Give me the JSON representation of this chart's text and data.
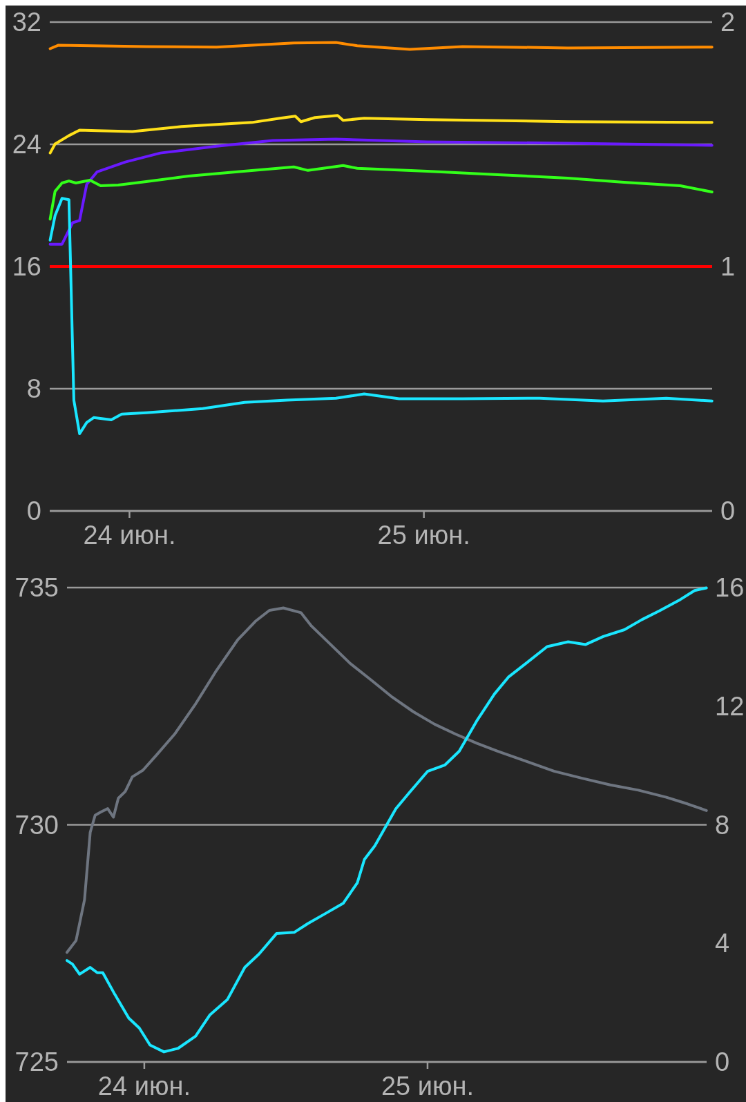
{
  "chart_data": [
    {
      "type": "line",
      "xlim": [
        "--06-23T17:30",
        "--06-25T23:30"
      ],
      "xticks": [
        {
          "value": "--06-24",
          "label": "24 июн."
        },
        {
          "value": "--06-25",
          "label": "25 июн."
        }
      ],
      "ylim": [
        0,
        32
      ],
      "yticks": [
        0,
        8,
        16,
        24,
        32
      ],
      "y2lim": [
        0,
        2
      ],
      "y2ticks": [
        0,
        1,
        2
      ],
      "grid": "y",
      "ref_lines": [
        {
          "axis": "y",
          "value": 16,
          "label": null,
          "color": "#ff0000"
        }
      ],
      "series": [
        {
          "color": "#ff8c00",
          "x": [
            "--06-23T17:32",
            "--06-23T18:13",
            "--06-24T01:22",
            "--06-24T07:06",
            "--06-24T13:24",
            "--06-24T16:50",
            "--06-24T18:34",
            "--06-24T22:51",
            "--06-25T03:09",
            "--06-25T11:44",
            "--06-25T23:29"
          ],
          "values": [
            30.26,
            30.49,
            30.4,
            30.36,
            30.63,
            30.67,
            30.45,
            30.22,
            30.4,
            30.31,
            30.36
          ]
        },
        {
          "color": "#ffe01a",
          "x": [
            "--06-23T17:32",
            "--06-23T17:56",
            "--06-23T19:04",
            "--06-23T19:56",
            "--06-23T21:22",
            "--06-24T00:14",
            "--06-24T04:14",
            "--06-24T09:58",
            "--06-24T12:16",
            "--06-24T13:31",
            "--06-24T13:59",
            "--06-24T15:07",
            "--06-24T16:58",
            "--06-24T17:25",
            "--06-24T19:08",
            "--06-25T00:17",
            "--06-25T11:44",
            "--06-25T23:29"
          ],
          "values": [
            23.43,
            24.02,
            24.57,
            24.93,
            24.89,
            24.84,
            25.16,
            25.43,
            25.71,
            25.84,
            25.48,
            25.75,
            25.89,
            25.57,
            25.71,
            25.62,
            25.48,
            25.43
          ]
        },
        {
          "color": "#6a1aff",
          "x": [
            "--06-23T17:32",
            "--06-23T18:30",
            "--06-23T19:22",
            "--06-23T19:56",
            "--06-23T20:31",
            "--06-23T21:22",
            "--06-23T23:40",
            "--06-24T02:31",
            "--06-24T07:06",
            "--06-24T11:41",
            "--06-24T16:50",
            "--06-25T00:17",
            "--06-25T11:44",
            "--06-25T23:29"
          ],
          "values": [
            17.46,
            17.46,
            18.87,
            19.01,
            21.38,
            22.2,
            22.84,
            23.43,
            23.88,
            24.25,
            24.34,
            24.16,
            24.07,
            23.93
          ]
        },
        {
          "color": "#33ff1a",
          "x": [
            "--06-23T17:32",
            "--06-23T17:56",
            "--06-23T18:30",
            "--06-23T19:04",
            "--06-23T19:38",
            "--06-23T20:47",
            "--06-23T21:39",
            "--06-23T23:05",
            "--06-24T01:22",
            "--06-24T04:49",
            "--06-24T08:49",
            "--06-24T13:24",
            "--06-24T14:33",
            "--06-24T17:25",
            "--06-24T18:34",
            "--06-25T00:17",
            "--06-25T06:01",
            "--06-25T11:44",
            "--06-25T16:19",
            "--06-25T20:54",
            "--06-25T23:29"
          ],
          "values": [
            19.1,
            20.92,
            21.47,
            21.6,
            21.47,
            21.65,
            21.29,
            21.33,
            21.56,
            21.92,
            22.2,
            22.52,
            22.29,
            22.61,
            22.43,
            22.24,
            22.01,
            21.79,
            21.51,
            21.29,
            20.88
          ]
        },
        {
          "color": "#1ae6ff",
          "x": [
            "--06-23T17:32",
            "--06-23T17:56",
            "--06-23T18:30",
            "--06-23T19:04",
            "--06-23T19:28",
            "--06-23T19:56",
            "--06-23T20:31",
            "--06-23T21:05",
            "--06-23T22:31",
            "--06-23T23:22",
            "--06-24T01:22",
            "--06-24T05:58",
            "--06-24T09:23",
            "--06-24T12:50",
            "--06-24T16:50",
            "--06-24T19:08",
            "--06-24T21:59",
            "--06-25T03:09",
            "--06-25T09:27",
            "--06-25T14:36",
            "--06-25T19:46",
            "--06-25T23:29"
          ],
          "values": [
            17.73,
            19.33,
            20.46,
            20.37,
            7.25,
            5.06,
            5.79,
            6.11,
            5.97,
            6.34,
            6.43,
            6.7,
            7.11,
            7.25,
            7.38,
            7.66,
            7.34,
            7.34,
            7.38,
            7.2,
            7.38,
            7.2
          ]
        }
      ]
    },
    {
      "type": "line",
      "xlim": [
        "--06-23T17:27",
        "--06-25T23:39"
      ],
      "xticks": [
        {
          "value": "--06-24",
          "label": "24 июн."
        },
        {
          "value": "--06-25",
          "label": "25 июн."
        }
      ],
      "ylim": [
        725,
        735
      ],
      "yticks": [
        725,
        730,
        735
      ],
      "y2lim": [
        0,
        16
      ],
      "y2ticks": [
        0,
        4,
        8,
        12,
        16
      ],
      "grid": "y",
      "series": [
        {
          "color": "#6e7580",
          "x": [
            "--06-23T17:27",
            "--06-23T18:13",
            "--06-23T18:56",
            "--06-23T19:25",
            "--06-23T19:50",
            "--06-23T20:19",
            "--06-23T20:54",
            "--06-23T21:23",
            "--06-23T21:48",
            "--06-23T22:23",
            "--06-23T22:59",
            "--06-23T23:53",
            "--06-24T01:04",
            "--06-24T02:34",
            "--06-24T04:21",
            "--06-24T06:08",
            "--06-24T07:55",
            "--06-24T09:25",
            "--06-24T10:36",
            "--06-24T11:47",
            "--06-24T13:17",
            "--06-24T14:10",
            "--06-24T15:40",
            "--06-24T17:27",
            "--06-24T19:14",
            "--06-24T21:01",
            "--06-24T22:49",
            "--06-25T00:36",
            "--06-25T02:23",
            "--06-25T04:10",
            "--06-25T05:58",
            "--06-25T08:20",
            "--06-25T10:43",
            "--06-25T13:06",
            "--06-25T15:29",
            "--06-25T17:52",
            "--06-25T20:14",
            "--06-25T22:02",
            "--06-25T23:38"
          ],
          "values": [
            727.31,
            727.56,
            728.42,
            729.84,
            730.2,
            730.27,
            730.34,
            730.16,
            730.56,
            730.7,
            731.01,
            731.15,
            731.48,
            731.91,
            732.55,
            733.26,
            733.9,
            734.29,
            734.52,
            734.57,
            734.47,
            734.19,
            733.83,
            733.4,
            733.05,
            732.69,
            732.38,
            732.12,
            731.91,
            731.72,
            731.55,
            731.34,
            731.13,
            730.98,
            730.84,
            730.73,
            730.58,
            730.44,
            730.3
          ]
        },
        {
          "color": "#1ae6ff",
          "axis": "y2",
          "x": [
            "--06-23T17:27",
            "--06-23T17:55",
            "--06-23T18:31",
            "--06-23T19:25",
            "--06-23T20:01",
            "--06-23T20:29",
            "--06-23T21:30",
            "--06-23T22:41",
            "--06-23T23:35",
            "--06-24T00:29",
            "--06-24T01:40",
            "--06-24T02:52",
            "--06-24T04:21",
            "--06-24T05:34",
            "--06-24T07:02",
            "--06-24T08:31",
            "--06-24T09:43",
            "--06-24T11:12",
            "--06-24T12:42",
            "--06-24T13:52",
            "--06-24T15:22",
            "--06-24T16:51",
            "--06-24T18:03",
            "--06-24T18:39",
            "--06-24T19:32",
            "--06-24T21:19",
            "--06-24T22:31",
            "--06-25T00:00",
            "--06-25T01:29",
            "--06-25T02:41",
            "--06-25T04:10",
            "--06-25T05:40",
            "--06-25T06:51",
            "--06-25T08:20",
            "--06-25T10:08",
            "--06-25T11:55",
            "--06-25T13:24",
            "--06-25T14:53",
            "--06-25T16:41",
            "--06-25T18:10",
            "--06-25T19:40",
            "--06-25T21:26",
            "--06-25T22:38",
            "--06-25T23:38"
          ],
          "values": [
            3.42,
            3.3,
            2.96,
            3.19,
            3.01,
            3.01,
            2.28,
            1.48,
            1.14,
            0.57,
            0.34,
            0.46,
            0.87,
            1.59,
            2.1,
            3.19,
            3.64,
            4.33,
            4.37,
            4.67,
            5.01,
            5.35,
            6.04,
            6.83,
            7.29,
            8.54,
            9.11,
            9.8,
            10.02,
            10.48,
            11.5,
            12.41,
            12.98,
            13.44,
            14.01,
            14.17,
            14.08,
            14.35,
            14.58,
            14.92,
            15.22,
            15.6,
            15.9,
            15.99
          ]
        }
      ]
    }
  ]
}
